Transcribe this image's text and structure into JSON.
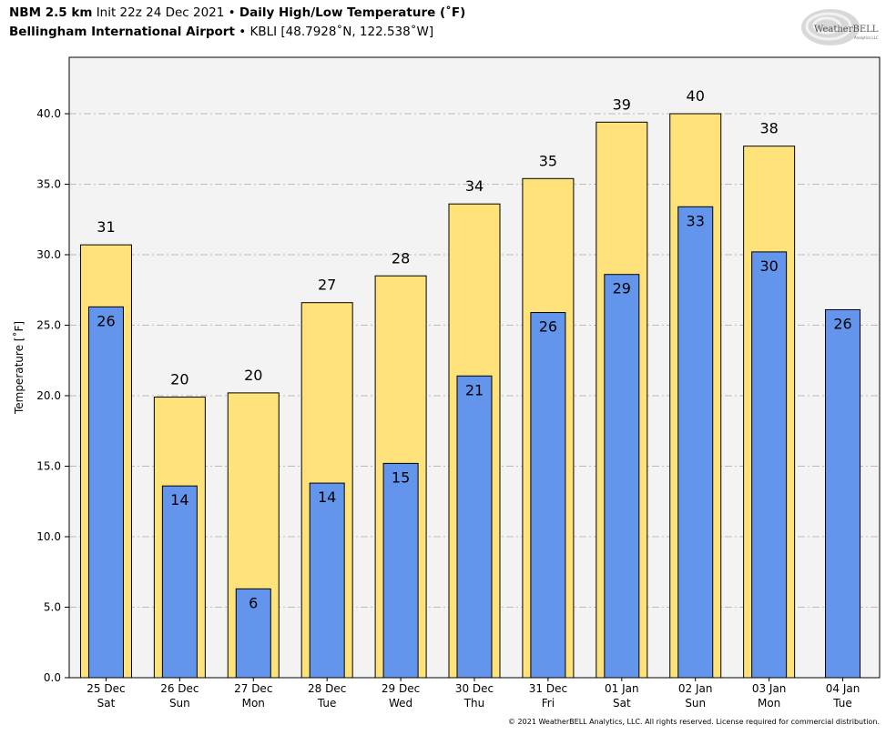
{
  "header": {
    "model": "NBM 2.5 km",
    "init": "Init 22z 24 Dec 2021",
    "separator": "•",
    "product": "Daily High/Low Temperature (˚F)",
    "station_name": "Bellingham International Airport",
    "station_info": "KBLI [48.7928˚N, 122.538˚W]"
  },
  "logo": {
    "brand": "WeatherBELL",
    "sub": "Analytics LLC"
  },
  "footer": {
    "copyright": "© 2021 WeatherBELL Analytics, LLC. All rights reserved. License required for commercial distribution."
  },
  "colors": {
    "high_fill": "#FFE37A",
    "low_fill": "#6495ED",
    "plot_bg": "#F3F3F3",
    "grid": "#BBBBBB"
  },
  "chart_data": {
    "type": "bar",
    "title": "Daily High/Low Temperature (˚F)",
    "xlabel": "",
    "ylabel": "Temperature [˚F]",
    "ylim": [
      0,
      44
    ],
    "yticks": [
      0,
      5,
      10,
      15,
      20,
      25,
      30,
      35,
      40
    ],
    "ytick_labels": [
      "0.0",
      "5.0",
      "10.0",
      "15.0",
      "20.0",
      "25.0",
      "30.0",
      "35.0",
      "40.0"
    ],
    "grid": true,
    "categories": [
      {
        "date": "25 Dec",
        "day": "Sat"
      },
      {
        "date": "26 Dec",
        "day": "Sun"
      },
      {
        "date": "27 Dec",
        "day": "Mon"
      },
      {
        "date": "28 Dec",
        "day": "Tue"
      },
      {
        "date": "29 Dec",
        "day": "Wed"
      },
      {
        "date": "30 Dec",
        "day": "Thu"
      },
      {
        "date": "31 Dec",
        "day": "Fri"
      },
      {
        "date": "01 Jan",
        "day": "Sat"
      },
      {
        "date": "02 Jan",
        "day": "Sun"
      },
      {
        "date": "03 Jan",
        "day": "Mon"
      },
      {
        "date": "04 Jan",
        "day": "Tue"
      }
    ],
    "series": [
      {
        "name": "High",
        "values": [
          30.7,
          19.9,
          20.2,
          26.6,
          28.5,
          33.6,
          35.4,
          39.4,
          40.0,
          37.7,
          null
        ],
        "labels": [
          "31",
          "20",
          "20",
          "27",
          "28",
          "34",
          "35",
          "39",
          "40",
          "38",
          ""
        ]
      },
      {
        "name": "Low",
        "values": [
          26.3,
          13.6,
          6.3,
          13.8,
          15.2,
          21.4,
          25.9,
          28.6,
          33.4,
          30.2,
          26.1
        ],
        "labels": [
          "26",
          "14",
          "6",
          "14",
          "15",
          "21",
          "26",
          "29",
          "33",
          "30",
          "26"
        ]
      }
    ]
  }
}
